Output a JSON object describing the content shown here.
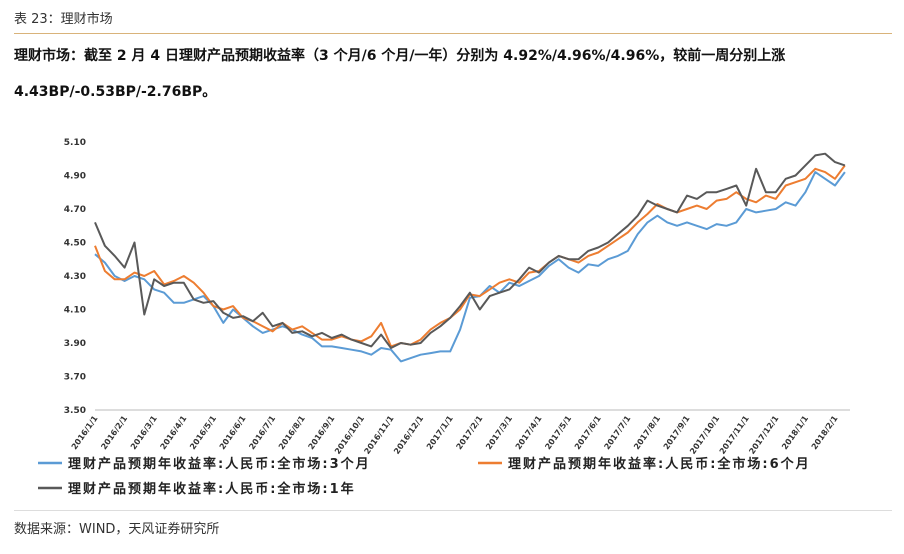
{
  "header": {
    "title": "表 23：理财市场"
  },
  "summary": "理财市场：截至 2 月 4 日理财产品预期收益率（3 个月/6 个月/一年）分别为 4.92%/4.96%/4.96%，较前一周分别上涨 4.43BP/-0.53BP/-2.76BP。",
  "chart_data": {
    "type": "line",
    "categories": [
      "2016/1/1",
      null,
      null,
      "2016/2/1",
      null,
      null,
      "2016/3/1",
      null,
      null,
      "2016/4/1",
      null,
      null,
      "2016/5/1",
      null,
      null,
      "2016/6/1",
      null,
      null,
      "2016/7/1",
      null,
      null,
      "2016/8/1",
      null,
      null,
      "2016/9/1",
      null,
      null,
      "2016/10/1",
      null,
      null,
      "2016/11/1",
      null,
      null,
      "2016/12/1",
      null,
      null,
      "2017/1/1",
      null,
      null,
      "2017/2/1",
      null,
      null,
      "2017/3/1",
      null,
      null,
      "2017/4/1",
      null,
      null,
      "2017/5/1",
      null,
      null,
      "2017/6/1",
      null,
      null,
      "2017/7/1",
      null,
      null,
      "2017/8/1",
      null,
      null,
      "2017/9/1",
      null,
      null,
      "2017/10/1",
      null,
      null,
      "2017/11/1",
      null,
      null,
      "2017/12/1",
      null,
      null,
      "2018/1/1",
      null,
      null,
      "2018/2/1",
      null
    ],
    "series": [
      {
        "name": "理财产品预期年收益率:人民币:全市场:3个月",
        "color": "#5b9bd5",
        "values": [
          4.43,
          4.38,
          4.3,
          4.27,
          4.3,
          4.28,
          4.22,
          4.2,
          4.14,
          4.14,
          4.16,
          4.18,
          4.12,
          4.02,
          4.1,
          4.05,
          4.0,
          3.96,
          3.98,
          4.0,
          3.98,
          3.95,
          3.93,
          3.88,
          3.88,
          3.87,
          3.86,
          3.85,
          3.83,
          3.87,
          3.86,
          3.79,
          3.81,
          3.83,
          3.84,
          3.85,
          3.85,
          3.98,
          4.17,
          4.18,
          4.24,
          4.2,
          4.26,
          4.24,
          4.27,
          4.3,
          4.36,
          4.4,
          4.35,
          4.32,
          4.37,
          4.36,
          4.4,
          4.42,
          4.45,
          4.55,
          4.62,
          4.66,
          4.62,
          4.6,
          4.62,
          4.6,
          4.58,
          4.61,
          4.6,
          4.62,
          4.7,
          4.68,
          4.69,
          4.7,
          4.74,
          4.72,
          4.8,
          4.92,
          4.88,
          4.84,
          4.92
        ]
      },
      {
        "name": "理财产品预期年收益率:人民币:全市场:6个月",
        "color": "#ed7d31",
        "values": [
          4.48,
          4.33,
          4.28,
          4.28,
          4.32,
          4.3,
          4.33,
          4.25,
          4.27,
          4.3,
          4.26,
          4.2,
          4.12,
          4.1,
          4.12,
          4.05,
          4.03,
          4.0,
          3.97,
          4.02,
          3.98,
          4.0,
          3.96,
          3.92,
          3.92,
          3.94,
          3.92,
          3.91,
          3.94,
          4.02,
          3.88,
          3.9,
          3.89,
          3.92,
          3.98,
          4.02,
          4.05,
          4.1,
          4.19,
          4.18,
          4.22,
          4.26,
          4.28,
          4.26,
          4.32,
          4.33,
          4.38,
          4.42,
          4.4,
          4.38,
          4.42,
          4.44,
          4.48,
          4.52,
          4.56,
          4.62,
          4.67,
          4.73,
          4.7,
          4.68,
          4.7,
          4.72,
          4.7,
          4.75,
          4.76,
          4.8,
          4.76,
          4.74,
          4.78,
          4.76,
          4.84,
          4.86,
          4.88,
          4.94,
          4.92,
          4.88,
          4.96
        ]
      },
      {
        "name": "理财产品预期年收益率:人民币:全市场:1年",
        "color": "#595959",
        "values": [
          4.62,
          4.48,
          4.42,
          4.35,
          4.5,
          4.07,
          4.28,
          4.24,
          4.26,
          4.26,
          4.16,
          4.14,
          4.15,
          4.08,
          4.05,
          4.06,
          4.03,
          4.08,
          4.0,
          4.02,
          3.96,
          3.97,
          3.94,
          3.96,
          3.93,
          3.95,
          3.92,
          3.9,
          3.88,
          3.95,
          3.87,
          3.9,
          3.89,
          3.9,
          3.96,
          4.0,
          4.05,
          4.12,
          4.2,
          4.1,
          4.18,
          4.2,
          4.22,
          4.28,
          4.35,
          4.32,
          4.38,
          4.42,
          4.4,
          4.4,
          4.45,
          4.47,
          4.5,
          4.55,
          4.6,
          4.66,
          4.75,
          4.72,
          4.7,
          4.68,
          4.78,
          4.76,
          4.8,
          4.8,
          4.82,
          4.84,
          4.72,
          4.94,
          4.8,
          4.8,
          4.88,
          4.9,
          4.96,
          5.02,
          5.03,
          4.98,
          4.96
        ]
      }
    ],
    "ylim": [
      3.5,
      5.1
    ],
    "yticks": [
      {
        "value": 3.5,
        "label": "3.50"
      },
      {
        "value": 3.7,
        "label": "3.70"
      },
      {
        "value": 3.9,
        "label": "3.90"
      },
      {
        "value": 4.1,
        "label": "4.10"
      },
      {
        "value": 4.3,
        "label": "4.30"
      },
      {
        "value": 4.5,
        "label": "4.50"
      },
      {
        "value": 4.7,
        "label": "4.70"
      },
      {
        "value": 4.9,
        "label": "4.90"
      },
      {
        "value": 5.1,
        "label": "5.10"
      }
    ],
    "grid": false
  },
  "source": "数据来源：WIND，天风证券研究所"
}
